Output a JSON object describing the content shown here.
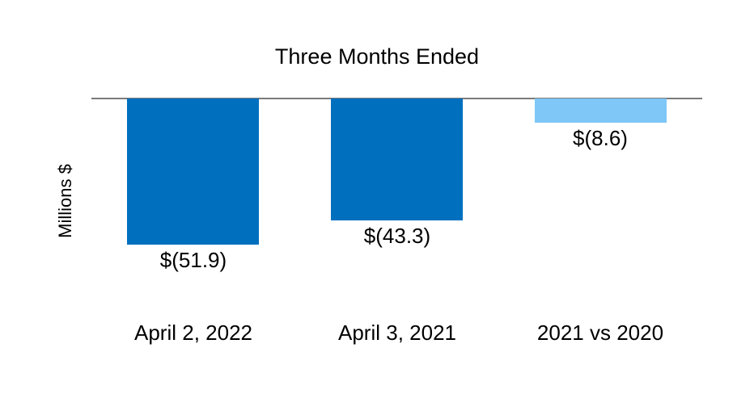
{
  "chart_data": {
    "type": "bar",
    "title": "Three Months Ended",
    "ylabel": "Millions $",
    "xlabel": "",
    "categories": [
      "April 2, 2022",
      "April 3, 2021",
      "2021 vs 2020"
    ],
    "values": [
      -51.9,
      -43.3,
      -8.6
    ],
    "data_labels": [
      "$(51.9)",
      "$(43.3)",
      "$(8.6)"
    ],
    "bar_colors": [
      "#0070BE",
      "#0070BE",
      "#7EC7F7"
    ],
    "baseline": 0,
    "ylim": [
      -55,
      0
    ],
    "grid": false,
    "legend": false,
    "data_label_position": "below-bar"
  },
  "colors": {
    "bar_primary": "#0070BE",
    "bar_highlight": "#7EC7F7",
    "axis_line": "#7a7a7a",
    "background": "#ffffff",
    "text": "#000000"
  }
}
